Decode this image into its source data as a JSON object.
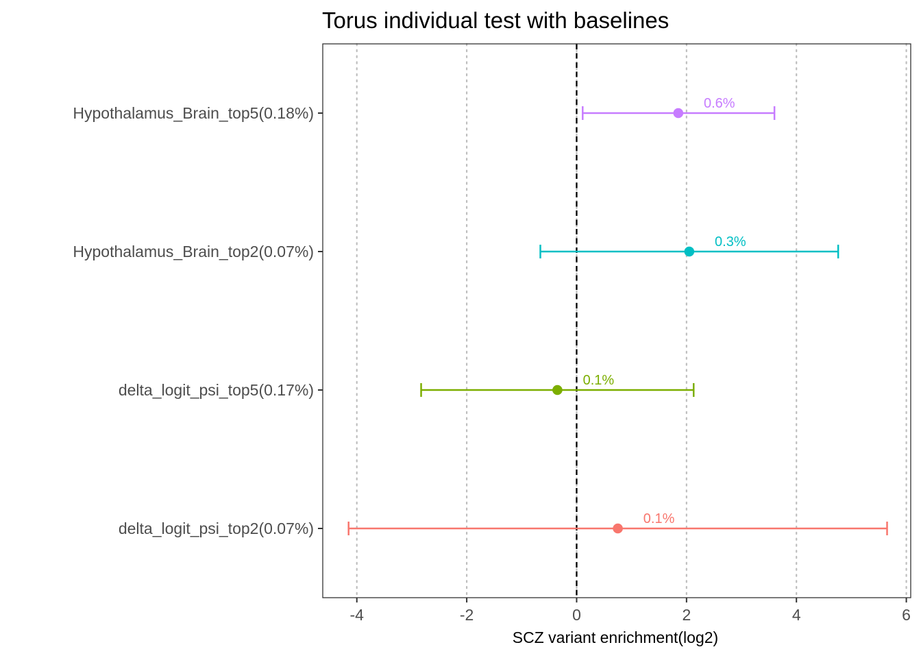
{
  "chart_data": {
    "type": "errorbar",
    "title": "Torus individual test with baselines",
    "xlabel": "SCZ variant enrichment(log2)",
    "ylabel": "",
    "xlim": [
      -4.62,
      6.08
    ],
    "xticks": [
      -4,
      -2,
      0,
      2,
      4,
      6
    ],
    "xtick_labels": [
      "-4",
      "-2",
      "0",
      "2",
      "4",
      "6"
    ],
    "reference_line": 0,
    "grid": "vertical dotted at major x ticks",
    "categories": [
      "delta_logit_psi_top2(0.07%)",
      "delta_logit_psi_top5(0.17%)",
      "Hypothalamus_Brain_top2(0.07%)",
      "Hypothalamus_Brain_top5(0.18%)"
    ],
    "points": [
      {
        "category": "delta_logit_psi_top2(0.07%)",
        "estimate": 0.75,
        "low": -4.15,
        "high": 5.65,
        "label": "0.1%",
        "color": "#F8766D"
      },
      {
        "category": "delta_logit_psi_top5(0.17%)",
        "estimate": -0.35,
        "low": -2.83,
        "high": 2.13,
        "label": "0.1%",
        "color": "#7CAE00"
      },
      {
        "category": "Hypothalamus_Brain_top2(0.07%)",
        "estimate": 2.05,
        "low": -0.66,
        "high": 4.76,
        "label": "0.3%",
        "color": "#00BFC4"
      },
      {
        "category": "Hypothalamus_Brain_top5(0.18%)",
        "estimate": 1.85,
        "low": 0.11,
        "high": 3.6,
        "label": "0.6%",
        "color": "#C77CFF"
      }
    ]
  }
}
